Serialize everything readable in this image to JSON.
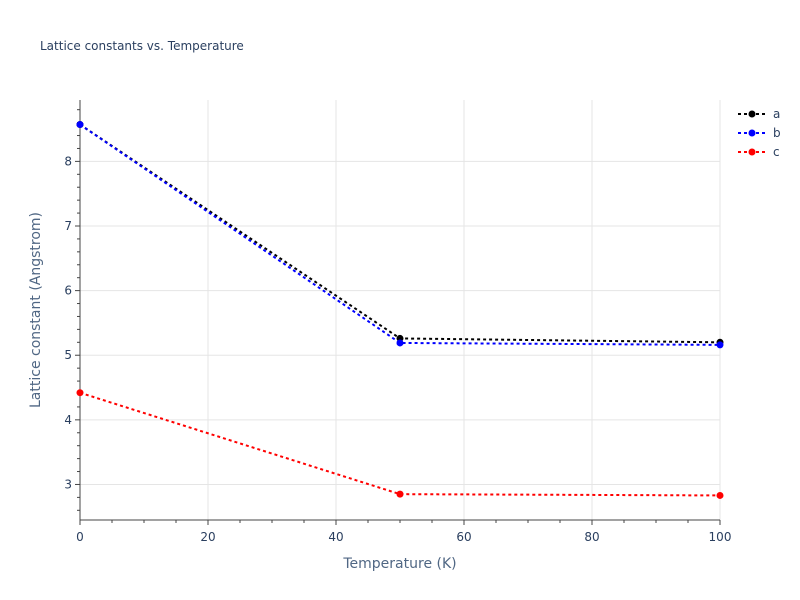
{
  "chart_data": {
    "type": "line",
    "title": "Lattice constants vs. Temperature",
    "xlabel": "Temperature (K)",
    "ylabel": "Lattice constant (Angstrom)",
    "xlim": [
      0,
      100
    ],
    "ylim": [
      2.45,
      8.95
    ],
    "xticks": [
      0,
      20,
      40,
      60,
      80,
      100
    ],
    "yticks": [
      3,
      4,
      5,
      6,
      7,
      8
    ],
    "grid": true,
    "legend_position": "top-right",
    "x": [
      0,
      50,
      100
    ],
    "series": [
      {
        "name": "a",
        "color": "#000000",
        "values": [
          8.57,
          5.26,
          5.2
        ]
      },
      {
        "name": "b",
        "color": "#0000ff",
        "values": [
          8.57,
          5.19,
          5.16
        ]
      },
      {
        "name": "c",
        "color": "#ff0000",
        "values": [
          4.42,
          2.85,
          2.83
        ]
      }
    ]
  }
}
